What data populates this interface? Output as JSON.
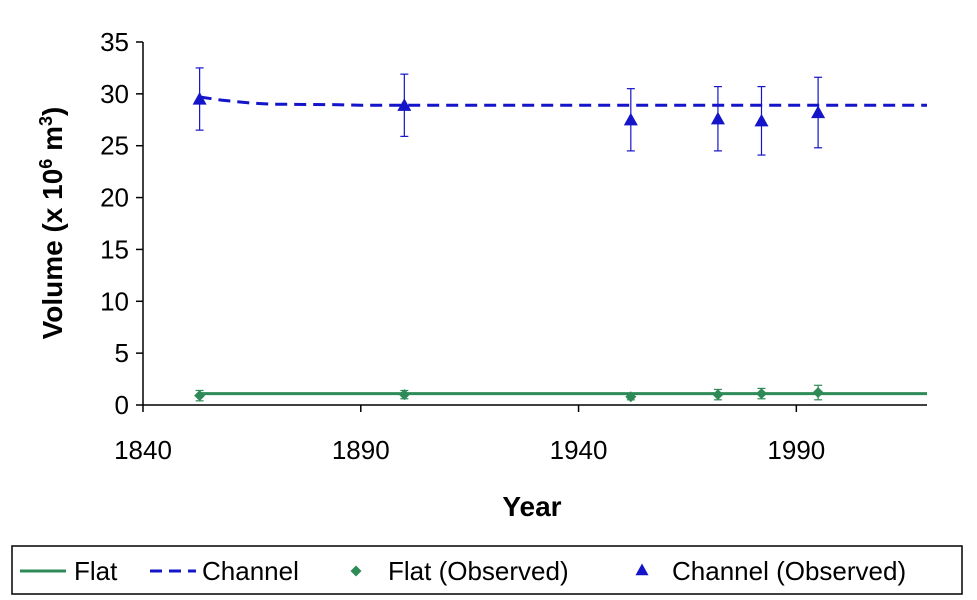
{
  "chart_data": {
    "type": "line",
    "title": "",
    "xlabel": "Year",
    "ylabel": {
      "prefix": "Volume (x 10",
      "exp1": "6",
      "mid": " m",
      "exp2": "3",
      "suffix": ")"
    },
    "xlim": [
      1840,
      2020
    ],
    "ylim": [
      0,
      35
    ],
    "x_ticks": [
      1840,
      1890,
      1940,
      1990
    ],
    "y_ticks": [
      0,
      5,
      10,
      15,
      20,
      25,
      30,
      35
    ],
    "grid": false,
    "legend_position": "bottom",
    "series": [
      {
        "name": "Flat",
        "kind": "line",
        "style": "solid",
        "color": "#2e8b57",
        "points": [
          [
            1853,
            1.1
          ],
          [
            1900,
            1.1
          ],
          [
            1950,
            1.1
          ],
          [
            2000,
            1.1
          ],
          [
            2020,
            1.1
          ]
        ]
      },
      {
        "name": "Channel",
        "kind": "line",
        "style": "dashed",
        "color": "#1414c8",
        "points": [
          [
            1853,
            29.7
          ],
          [
            1858,
            29.4
          ],
          [
            1865,
            29.1
          ],
          [
            1870,
            29.0
          ],
          [
            1885,
            28.95
          ],
          [
            1890,
            28.9
          ],
          [
            1920,
            28.9
          ],
          [
            1960,
            28.9
          ],
          [
            2020,
            28.9
          ]
        ]
      },
      {
        "name": "Flat (Observed)",
        "kind": "scatter",
        "marker": "diamond",
        "color": "#2e8b57",
        "points": [
          {
            "x": 1853,
            "y": 0.9,
            "err": 0.5
          },
          {
            "x": 1900,
            "y": 1.0,
            "err": 0.4
          },
          {
            "x": 1952,
            "y": 0.8,
            "err": 0.3
          },
          {
            "x": 1972,
            "y": 1.0,
            "err": 0.5
          },
          {
            "x": 1982,
            "y": 1.1,
            "err": 0.5
          },
          {
            "x": 1995,
            "y": 1.2,
            "err": 0.7
          }
        ]
      },
      {
        "name": "Channel (Observed)",
        "kind": "scatter",
        "marker": "triangle",
        "color": "#1414c8",
        "points": [
          {
            "x": 1853,
            "y": 29.5,
            "err": 3.0
          },
          {
            "x": 1900,
            "y": 28.9,
            "err": 3.0
          },
          {
            "x": 1952,
            "y": 27.5,
            "err": 3.0
          },
          {
            "x": 1972,
            "y": 27.6,
            "err": 3.1
          },
          {
            "x": 1982,
            "y": 27.4,
            "err": 3.3
          },
          {
            "x": 1995,
            "y": 28.2,
            "err": 3.4
          }
        ]
      }
    ]
  }
}
